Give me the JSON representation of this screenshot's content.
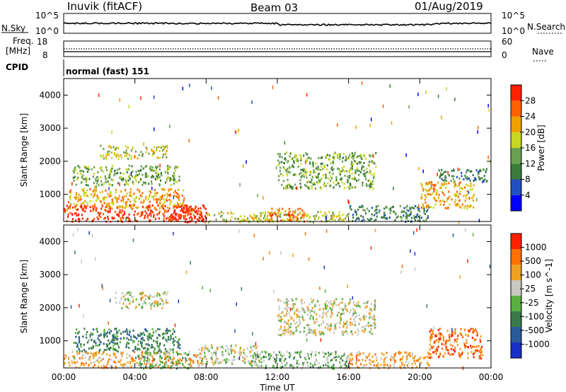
{
  "header": {
    "station": "Inuvik (fitACF)",
    "beam": "Beam 03",
    "date": "01/Aug/2019"
  },
  "status_panels": {
    "nsky_label": "N.Sky",
    "nsky_ticks": [
      "10^5",
      "10^0"
    ],
    "nsearch_label": "N.Search",
    "nsearch_ticks": [
      "10^5",
      "10^0"
    ],
    "freq_label_1": "Freq.",
    "freq_label_2": "[MHz]",
    "freq_ticks": [
      "18",
      "8"
    ],
    "nave_label": "Nave",
    "nave_ticks": [
      "60",
      "0"
    ],
    "cpid_label": "CPID",
    "cpid_value": "normal (fast) 151"
  },
  "chart_data": [
    {
      "type": "heatmap",
      "title": "",
      "parameter": "Power",
      "ylabel": "Slant Range [km]",
      "xlabel": "",
      "x_ticks": [
        "00:00",
        "04:00",
        "08:00",
        "12:00",
        "16:00",
        "20:00",
        "00:00"
      ],
      "y_ticks": [
        "1000",
        "2000",
        "3000",
        "4000"
      ],
      "xlim": [
        0,
        24
      ],
      "ylim": [
        180,
        4500
      ],
      "colorbar": {
        "label": "Power [dB]",
        "ticks": [
          "4",
          "8",
          "12",
          "16",
          "20",
          "24",
          "28"
        ],
        "colors": [
          "#0000ff",
          "#2050c0",
          "#3a7a3a",
          "#6aa050",
          "#c8d820",
          "#f0a000",
          "#ff6000",
          "#ff2000"
        ]
      },
      "regions": [
        {
          "t0": 0.0,
          "t1": 7.8,
          "r0": 200,
          "r1": 700,
          "level": 7
        },
        {
          "t0": 0.2,
          "t1": 6.8,
          "r0": 600,
          "r1": 1200,
          "level": 5
        },
        {
          "t0": 0.5,
          "t1": 6.5,
          "r0": 1300,
          "r1": 1900,
          "level": 3
        },
        {
          "t0": 2.0,
          "t1": 5.8,
          "r0": 2100,
          "r1": 2500,
          "level": 4
        },
        {
          "t0": 6.0,
          "t1": 8.0,
          "r0": 180,
          "r1": 700,
          "level": 7
        },
        {
          "t0": 8.0,
          "t1": 16.0,
          "r0": 180,
          "r1": 500,
          "level": 4
        },
        {
          "t0": 11.5,
          "t1": 13.5,
          "r0": 200,
          "r1": 600,
          "level": 6
        },
        {
          "t0": 12.0,
          "t1": 17.5,
          "r0": 1200,
          "r1": 2300,
          "level": 3
        },
        {
          "t0": 16.0,
          "t1": 20.5,
          "r0": 200,
          "r1": 700,
          "level": 2
        },
        {
          "t0": 20.0,
          "t1": 23.0,
          "r0": 600,
          "r1": 1400,
          "level": 5
        },
        {
          "t0": 21.0,
          "t1": 23.8,
          "r0": 1400,
          "r1": 1800,
          "level": 2
        }
      ]
    },
    {
      "type": "heatmap",
      "title": "",
      "parameter": "Velocity",
      "ylabel": "Slant Range [km]",
      "xlabel": "Time UT",
      "x_ticks": [
        "00:00",
        "04:00",
        "08:00",
        "12:00",
        "16:00",
        "20:00",
        "00:00"
      ],
      "y_ticks": [
        "1000",
        "2000",
        "3000",
        "4000"
      ],
      "xlim": [
        0,
        24
      ],
      "ylim": [
        180,
        4500
      ],
      "colorbar": {
        "label": "Velocity [m s^-1]",
        "ticks": [
          "1000",
          "500",
          "100",
          "25",
          "-25",
          "-100",
          "-500",
          "-1000"
        ],
        "colors": [
          "#1830c8",
          "#2a5a9a",
          "#3a7a4a",
          "#58b040",
          "#c8c8c0",
          "#f0a020",
          "#ff7000",
          "#ff2000"
        ]
      },
      "regions": [
        {
          "t0": 0.0,
          "t1": 7.8,
          "r0": 200,
          "r1": 700,
          "level": 5
        },
        {
          "t0": 0.5,
          "t1": 6.5,
          "r0": 700,
          "r1": 1400,
          "level": 2
        },
        {
          "t0": 2.8,
          "t1": 5.8,
          "r0": 2000,
          "r1": 2500,
          "level": 4
        },
        {
          "t0": 4.0,
          "t1": 7.0,
          "r0": 180,
          "r1": 700,
          "level": 3
        },
        {
          "t0": 7.5,
          "t1": 11.0,
          "r0": 300,
          "r1": 900,
          "level": 4
        },
        {
          "t0": 10.5,
          "t1": 16.0,
          "r0": 180,
          "r1": 700,
          "level": 3
        },
        {
          "t0": 12.0,
          "t1": 17.5,
          "r0": 1200,
          "r1": 2300,
          "level": 4
        },
        {
          "t0": 16.0,
          "t1": 20.5,
          "r0": 200,
          "r1": 700,
          "level": 5
        },
        {
          "t0": 20.5,
          "t1": 23.5,
          "r0": 500,
          "r1": 1400,
          "level": 6
        }
      ]
    }
  ]
}
